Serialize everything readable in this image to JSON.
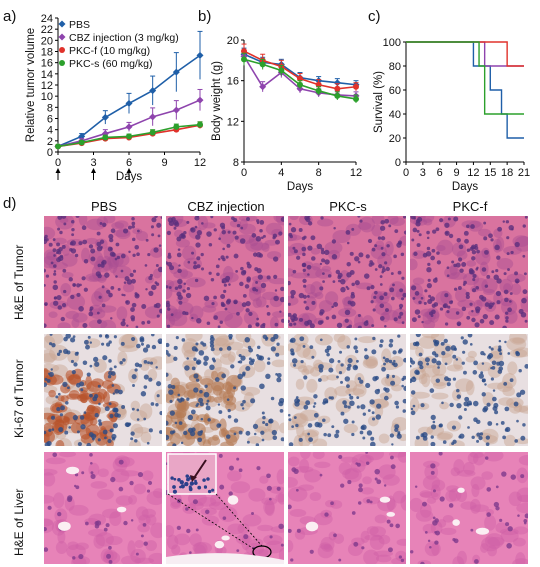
{
  "panels": {
    "a": "a)",
    "b": "b)",
    "c": "c)",
    "d": "d)"
  },
  "chart_data": [
    {
      "type": "line",
      "panel": "a",
      "xlabel": "Days",
      "ylabel": "Relative tumor volume",
      "xlim": [
        0,
        12
      ],
      "ylim": [
        0,
        24
      ],
      "xticks": [
        0,
        3,
        6,
        9,
        12
      ],
      "yticks": [
        0,
        2,
        4,
        6,
        8,
        10,
        12,
        14,
        16,
        18,
        20,
        22,
        24
      ],
      "dosing_days": [
        0,
        3,
        6
      ],
      "x": [
        0,
        2,
        4,
        6,
        8,
        10,
        12
      ],
      "series": [
        {
          "name": "PBS",
          "color": "#1f5fa8",
          "values": [
            1.0,
            2.8,
            6.2,
            8.7,
            11.0,
            14.3,
            17.3
          ],
          "err": [
            0.3,
            0.5,
            1.2,
            1.8,
            2.6,
            3.5,
            4.3
          ]
        },
        {
          "name": "CBZ injection (3 mg/kg)",
          "color": "#8e44ad",
          "values": [
            1.0,
            2.0,
            3.3,
            4.5,
            6.3,
            7.5,
            9.3
          ],
          "err": [
            0.2,
            0.4,
            0.7,
            0.8,
            1.6,
            1.7,
            1.9
          ]
        },
        {
          "name": "PKC-f (10 mg/kg)",
          "color": "#e0322b",
          "values": [
            1.0,
            1.6,
            2.4,
            2.6,
            3.3,
            4.0,
            4.8
          ],
          "err": [
            0.1,
            0.3,
            0.4,
            0.4,
            0.5,
            0.5,
            0.6
          ]
        },
        {
          "name": "PKC-s (60 mg/kg)",
          "color": "#2ca02c",
          "values": [
            1.0,
            1.7,
            2.6,
            2.8,
            3.5,
            4.5,
            4.9
          ],
          "err": [
            0.1,
            0.3,
            0.4,
            0.4,
            0.5,
            0.5,
            0.5
          ]
        }
      ]
    },
    {
      "type": "line",
      "panel": "b",
      "xlabel": "Days",
      "ylabel": "Body weight (g)",
      "xlim": [
        0,
        12
      ],
      "ylim": [
        8,
        20
      ],
      "xticks": [
        0,
        4,
        8,
        12
      ],
      "yticks": [
        8,
        12,
        16,
        20
      ],
      "x": [
        0,
        2,
        4,
        6,
        8,
        10,
        12
      ],
      "series": [
        {
          "name": "PBS",
          "color": "#1f5fa8",
          "values": [
            18.6,
            17.8,
            17.6,
            16.3,
            16.0,
            15.8,
            15.6
          ],
          "err": [
            0.6,
            0.5,
            0.5,
            0.5,
            0.4,
            0.4,
            0.4
          ]
        },
        {
          "name": "CBZ injection (3 mg/kg)",
          "color": "#8e44ad",
          "values": [
            18.4,
            15.4,
            16.8,
            15.2,
            14.8,
            14.6,
            14.5
          ],
          "err": [
            0.6,
            0.5,
            0.5,
            0.4,
            0.4,
            0.4,
            0.4
          ]
        },
        {
          "name": "PKC-f (10 mg/kg)",
          "color": "#e0322b",
          "values": [
            18.9,
            18.0,
            17.4,
            16.2,
            15.6,
            15.2,
            15.4
          ],
          "err": [
            0.7,
            0.6,
            0.6,
            0.5,
            0.5,
            0.5,
            0.4
          ]
        },
        {
          "name": "PKC-s (60 mg/kg)",
          "color": "#2ca02c",
          "values": [
            18.1,
            17.6,
            17.0,
            15.6,
            15.0,
            14.5,
            14.2
          ],
          "err": [
            0.6,
            0.5,
            0.5,
            0.4,
            0.4,
            0.4,
            0.4
          ]
        }
      ]
    },
    {
      "type": "line",
      "panel": "c",
      "step": true,
      "xlabel": "Days",
      "ylabel": "Survival (%)",
      "xlim": [
        0,
        21
      ],
      "ylim": [
        0,
        100
      ],
      "xticks": [
        0,
        3,
        6,
        9,
        12,
        15,
        18,
        21
      ],
      "yticks": [
        0,
        20,
        40,
        60,
        80,
        100
      ],
      "series": [
        {
          "name": "PBS",
          "color": "#1f5fa8",
          "steps": [
            [
              0,
              100
            ],
            [
              12,
              100
            ],
            [
              12,
              80
            ],
            [
              15,
              80
            ],
            [
              15,
              60
            ],
            [
              17,
              60
            ],
            [
              17,
              40
            ],
            [
              18,
              40
            ],
            [
              18,
              20
            ],
            [
              21,
              20
            ]
          ]
        },
        {
          "name": "CBZ injection (3 mg/kg)",
          "color": "#8e44ad",
          "steps": [
            [
              0,
              100
            ],
            [
              14,
              100
            ],
            [
              14,
              80
            ],
            [
              21,
              80
            ]
          ]
        },
        {
          "name": "PKC-f (10 mg/kg)",
          "color": "#e0322b",
          "steps": [
            [
              0,
              100
            ],
            [
              18,
              100
            ],
            [
              18,
              80
            ],
            [
              21,
              80
            ]
          ]
        },
        {
          "name": "PKC-s (60 mg/kg)",
          "color": "#2ca02c",
          "steps": [
            [
              0,
              100
            ],
            [
              13,
              100
            ],
            [
              13,
              80
            ],
            [
              14,
              80
            ],
            [
              14,
              40
            ],
            [
              21,
              40
            ]
          ]
        }
      ]
    }
  ],
  "histology": {
    "columns": [
      "PBS",
      "CBZ injection",
      "PKC-s",
      "PKC-f"
    ],
    "rows": [
      "H&E of Tumor",
      "Ki-67 of Tumor",
      "H&E of Liver"
    ]
  }
}
